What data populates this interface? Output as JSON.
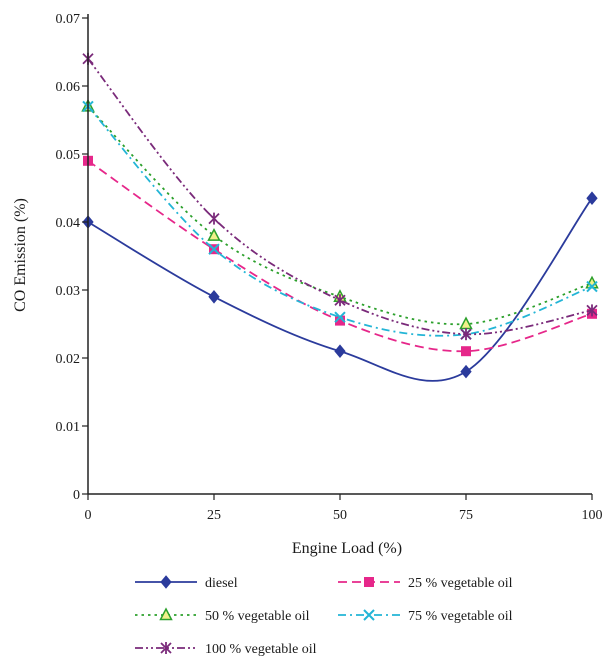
{
  "chart_data": {
    "type": "line",
    "xlabel": "Engine Load (%)",
    "ylabel": "CO Emission (%)",
    "x": [
      0,
      25,
      50,
      75,
      100
    ],
    "xticks": [
      "0",
      "25",
      "50",
      "75",
      "100"
    ],
    "yticks": [
      "0",
      "0.01",
      "0.02",
      "0.03",
      "0.04",
      "0.05",
      "0.06",
      "0.07"
    ],
    "xlim": [
      0,
      100
    ],
    "ylim": [
      0,
      0.07
    ],
    "grid": false,
    "legend_position": "bottom",
    "series": [
      {
        "name": "diesel",
        "values": [
          0.04,
          0.029,
          0.021,
          0.018,
          0.0435
        ],
        "color": "#2b3b9c",
        "dash": "solid",
        "marker": "diamond"
      },
      {
        "name": "25 % vegetable oil",
        "values": [
          0.049,
          0.036,
          0.0255,
          0.021,
          0.0265
        ],
        "color": "#e6278a",
        "dash": "dashed",
        "marker": "square"
      },
      {
        "name": "50 % vegetable oil",
        "values": [
          0.057,
          0.038,
          0.029,
          0.025,
          0.031
        ],
        "color": "#2ca02c",
        "dash": "dotted",
        "marker": "triangle"
      },
      {
        "name": "75 % vegetable oil",
        "values": [
          0.057,
          0.036,
          0.026,
          0.0235,
          0.0305
        ],
        "color": "#23b5d6",
        "dash": "dashdot",
        "marker": "x"
      },
      {
        "name": "100 % vegetable oil",
        "values": [
          0.064,
          0.0405,
          0.0285,
          0.0235,
          0.027
        ],
        "color": "#7a2a7a",
        "dash": "dashdotdot",
        "marker": "asterisk"
      }
    ]
  }
}
